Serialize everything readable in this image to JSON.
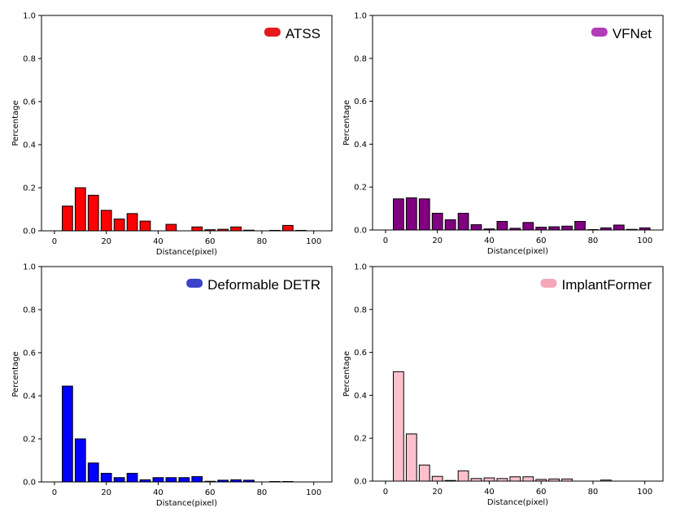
{
  "chart_data": [
    {
      "type": "bar",
      "title": "",
      "legend": "ATSS",
      "color": "#ff0000",
      "legend_color": "#e41a1c",
      "xlabel": "Distance(pixel)",
      "ylabel": "Percentage",
      "xlim": [
        -5,
        107
      ],
      "ylim": [
        0,
        1.0
      ],
      "xticks": [
        0,
        20,
        40,
        60,
        80,
        100
      ],
      "yticks": [
        0.0,
        0.2,
        0.4,
        0.6,
        0.8,
        1.0
      ],
      "legend_position": "top-right",
      "x": [
        5,
        10,
        15,
        20,
        25,
        30,
        35,
        40,
        45,
        50,
        55,
        60,
        65,
        70,
        75,
        80,
        85,
        90,
        95,
        100
      ],
      "values": [
        0.115,
        0.2,
        0.165,
        0.095,
        0.055,
        0.08,
        0.045,
        0.0,
        0.03,
        0.0,
        0.018,
        0.005,
        0.007,
        0.018,
        0.003,
        0.0,
        0.002,
        0.025,
        0.002,
        0.0
      ]
    },
    {
      "type": "bar",
      "title": "",
      "legend": "VFNet",
      "color": "#800080",
      "legend_color": "#b23cb8",
      "xlabel": "Distance(pixel)",
      "ylabel": "Percentage",
      "xlim": [
        -5,
        107
      ],
      "ylim": [
        0,
        1.0
      ],
      "xticks": [
        0,
        20,
        40,
        60,
        80,
        100
      ],
      "yticks": [
        0.0,
        0.2,
        0.4,
        0.6,
        0.8,
        1.0
      ],
      "legend_position": "top-right",
      "x": [
        5,
        10,
        15,
        20,
        25,
        30,
        35,
        40,
        45,
        50,
        55,
        60,
        65,
        70,
        75,
        80,
        85,
        90,
        95,
        100
      ],
      "values": [
        0.145,
        0.15,
        0.145,
        0.078,
        0.048,
        0.078,
        0.025,
        0.005,
        0.04,
        0.008,
        0.035,
        0.013,
        0.015,
        0.018,
        0.04,
        0.002,
        0.01,
        0.023,
        0.003,
        0.01
      ]
    },
    {
      "type": "bar",
      "title": "",
      "legend": "Deformable DETR",
      "color": "#0000ff",
      "legend_color": "#3a43c9",
      "xlabel": "Distance(pixel)",
      "ylabel": "Percentage",
      "xlim": [
        -5,
        107
      ],
      "ylim": [
        0,
        1.0
      ],
      "xticks": [
        0,
        20,
        40,
        60,
        80,
        100
      ],
      "yticks": [
        0.0,
        0.2,
        0.4,
        0.6,
        0.8,
        1.0
      ],
      "legend_position": "top-right",
      "x": [
        5,
        10,
        15,
        20,
        25,
        30,
        35,
        40,
        45,
        50,
        55,
        60,
        65,
        70,
        75,
        80,
        85,
        90,
        95,
        100
      ],
      "values": [
        0.445,
        0.2,
        0.088,
        0.04,
        0.02,
        0.04,
        0.01,
        0.02,
        0.02,
        0.02,
        0.025,
        0.003,
        0.008,
        0.01,
        0.008,
        0.0,
        0.002,
        0.002,
        0.0,
        0.0
      ]
    },
    {
      "type": "bar",
      "title": "",
      "legend": "ImplantFormer",
      "color": "#ffc0cb",
      "legend_color": "#f4a7b9",
      "xlabel": "Distance(pixel)",
      "ylabel": "Percentage",
      "xlim": [
        -5,
        107
      ],
      "ylim": [
        0,
        1.0
      ],
      "xticks": [
        0,
        20,
        40,
        60,
        80,
        100
      ],
      "yticks": [
        0.0,
        0.2,
        0.4,
        0.6,
        0.8,
        1.0
      ],
      "legend_position": "top-right",
      "x": [
        5,
        10,
        15,
        20,
        25,
        30,
        35,
        40,
        45,
        50,
        55,
        60,
        65,
        70,
        75,
        80,
        85,
        90,
        95,
        100
      ],
      "values": [
        0.51,
        0.22,
        0.075,
        0.022,
        0.003,
        0.048,
        0.012,
        0.015,
        0.012,
        0.02,
        0.02,
        0.008,
        0.01,
        0.01,
        0.0,
        0.0,
        0.005,
        0.0,
        0.0,
        0.0
      ]
    }
  ]
}
